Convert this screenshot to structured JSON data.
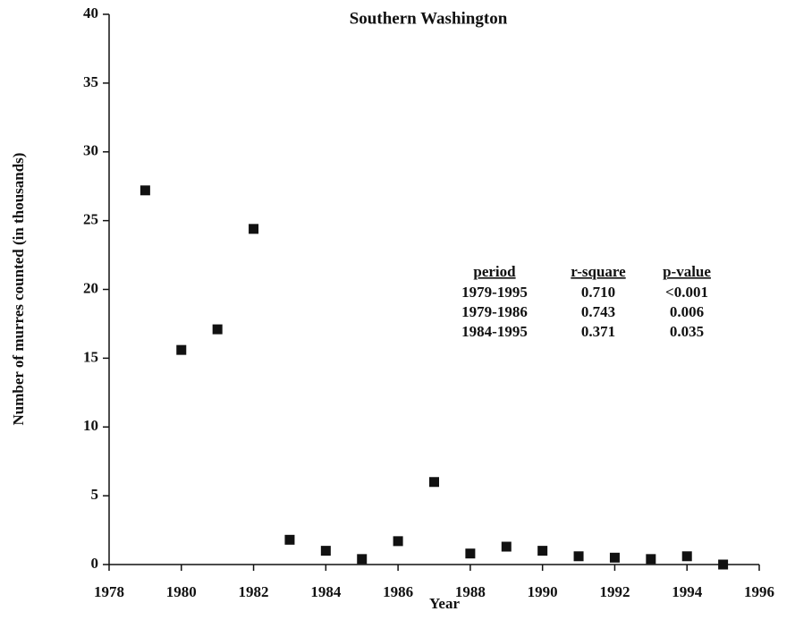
{
  "chart_data": {
    "type": "scatter",
    "title": "Southern Washington",
    "x_label": "Year",
    "y_label": "Number of murres counted (in thousands)",
    "series": [
      {
        "name": "Southern Washington",
        "color": "#111111",
        "x": [
          1979,
          1980,
          1981,
          1982,
          1983,
          1984,
          1985,
          1986,
          1987,
          1988,
          1989,
          1990,
          1991,
          1992,
          1993,
          1994,
          1995
        ],
        "values": [
          27.2,
          15.6,
          17.1,
          24.4,
          1.8,
          1.0,
          0.4,
          1.7,
          6.0,
          0.8,
          1.3,
          1.0,
          0.6,
          0.5,
          0.4,
          0.6,
          0
        ]
      }
    ],
    "xlim": [
      1978,
      1996
    ],
    "xticks": [
      1978,
      1980,
      1982,
      1984,
      1986,
      1988,
      1990,
      1992,
      1994,
      1996
    ],
    "ylim": [
      0,
      40
    ],
    "yticks": [
      0,
      5,
      10,
      15,
      20,
      25,
      30,
      35,
      40
    ],
    "grid": false,
    "table": {
      "columns": [
        "period",
        "r-square",
        "p-value"
      ],
      "rows": [
        [
          "1979-1995",
          "0.710",
          "<0.001"
        ],
        [
          "1979-1986",
          "0.743",
          "0.006"
        ],
        [
          "1984-1995",
          "0.371",
          "0.035"
        ]
      ]
    }
  }
}
